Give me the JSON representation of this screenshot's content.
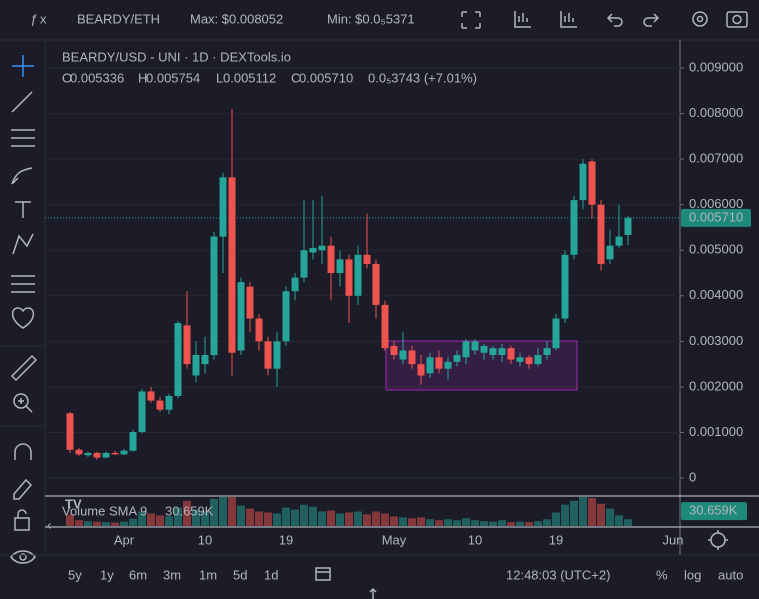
{
  "toolbar": {
    "pair": "BEARDY/ETH",
    "max": "Max: $0.008052",
    "min": "Min: $0.0₅5371"
  },
  "legend": {
    "title": "BEARDY/USD - UNI · 1D · DEXTools.io",
    "ohlc": [
      [
        "O",
        "0.005336"
      ],
      [
        "H",
        "0.005754"
      ],
      [
        "L",
        "0.005112"
      ],
      [
        "C",
        "0.005710"
      ]
    ],
    "change": "0.0₅3743 (+7.01%)",
    "volume_title": "Volume SMA 9",
    "volume_sma": "30.659K"
  },
  "bottom_bar": {
    "ranges": [
      "5y",
      "1y",
      "6m",
      "3m",
      "1m",
      "5d",
      "1d"
    ],
    "clock": "12:48:03 (UTC+2)",
    "options": [
      "%",
      "log",
      "auto"
    ]
  },
  "chart_data": {
    "type": "candlestick",
    "categories": [
      null,
      null,
      null,
      null,
      null,
      null,
      "Apr",
      null,
      null,
      null,
      null,
      null,
      null,
      null,
      null,
      "10",
      null,
      null,
      null,
      null,
      null,
      null,
      null,
      null,
      "19",
      null,
      null,
      null,
      null,
      null,
      null,
      null,
      null,
      null,
      null,
      null,
      "May",
      null,
      null,
      null,
      null,
      null,
      null,
      null,
      null,
      "10",
      null,
      null,
      null,
      null,
      null,
      null,
      null,
      null,
      "19",
      null,
      null,
      null,
      null,
      null,
      null,
      null,
      null,
      null,
      null,
      null,
      null,
      "Jun"
    ],
    "open": [
      0.00142,
      0.00062,
      0.0005,
      0.00055,
      0.00045,
      0.00055,
      0.00052,
      0.0006,
      0.00101,
      0.0019,
      0.0017,
      0.0015,
      0.0018,
      0.00335,
      0.00225,
      0.0025,
      0.0027,
      0.0053,
      0.0066,
      0.0028,
      0.0042,
      0.0035,
      0.003,
      0.0024,
      0.003,
      0.0041,
      0.0044,
      0.00495,
      0.005,
      0.0051,
      0.0045,
      0.0048,
      0.004,
      0.0049,
      0.0047,
      0.0038,
      0.0029,
      0.0026,
      0.0028,
      0.0025,
      0.0023,
      0.00265,
      0.0024,
      0.00255,
      0.00265,
      0.0028,
      0.00275,
      0.0027,
      0.0027,
      0.00285,
      0.00255,
      0.00265,
      0.0025,
      0.0027,
      0.00285,
      0.0035,
      0.0049,
      0.0061,
      0.00695,
      0.006,
      0.0048,
      0.0051,
      0.005336,
      null,
      null,
      null,
      null,
      null
    ],
    "high": [
      0.00145,
      0.00066,
      0.00058,
      0.00058,
      0.00058,
      0.0006,
      0.00064,
      0.00106,
      0.00196,
      0.002,
      0.00178,
      0.00185,
      0.00345,
      0.0041,
      0.003,
      0.0031,
      0.0054,
      0.0067,
      0.0081,
      0.0044,
      0.0043,
      0.0036,
      0.0031,
      0.0032,
      0.0042,
      0.0045,
      0.0061,
      0.0061,
      0.0062,
      0.0053,
      0.005,
      0.0049,
      0.0051,
      0.0058,
      0.0048,
      0.0039,
      0.003,
      0.0032,
      0.0029,
      0.0027,
      0.00275,
      0.0028,
      0.00265,
      0.0028,
      0.00305,
      0.00305,
      0.00295,
      0.0029,
      0.00295,
      0.0029,
      0.00275,
      0.0027,
      0.00285,
      0.003,
      0.0036,
      0.005,
      0.0062,
      0.007,
      0.007,
      0.0061,
      0.00545,
      0.006,
      0.005754,
      null,
      null,
      null,
      null,
      null
    ],
    "low": [
      0.00055,
      0.00048,
      0.00046,
      0.0004,
      0.00043,
      0.0005,
      0.0005,
      0.00058,
      0.00098,
      0.00165,
      0.00145,
      0.0014,
      0.00175,
      0.0024,
      0.0021,
      0.0023,
      0.0026,
      0.0045,
      0.00225,
      0.0027,
      0.0032,
      0.0028,
      0.00225,
      0.002,
      0.0029,
      0.0039,
      0.0043,
      0.0048,
      0.0047,
      0.0039,
      0.0042,
      0.0034,
      0.0038,
      0.0046,
      0.0035,
      0.0028,
      0.0026,
      0.0025,
      0.0024,
      0.00205,
      0.0022,
      0.0023,
      0.00215,
      0.00245,
      0.0025,
      0.0027,
      0.0026,
      0.0026,
      0.00255,
      0.0025,
      0.00245,
      0.0024,
      0.00245,
      0.0026,
      0.0028,
      0.0034,
      0.0048,
      0.0059,
      0.0057,
      0.00455,
      0.0047,
      0.00505,
      0.005112,
      null,
      null,
      null,
      null,
      null
    ],
    "close": [
      0.00062,
      0.00052,
      0.00055,
      0.00045,
      0.00055,
      0.00052,
      0.0006,
      0.00101,
      0.0019,
      0.0017,
      0.0015,
      0.0018,
      0.0034,
      0.0025,
      0.0027,
      0.0027,
      0.0053,
      0.0066,
      0.00275,
      0.0043,
      0.0035,
      0.003,
      0.0024,
      0.003,
      0.0041,
      0.0044,
      0.005,
      0.00505,
      0.0051,
      0.0045,
      0.0048,
      0.004,
      0.0049,
      0.0047,
      0.0038,
      0.00285,
      0.0027,
      0.0028,
      0.0025,
      0.00225,
      0.00265,
      0.0024,
      0.00255,
      0.0027,
      0.003,
      0.003,
      0.0029,
      0.00285,
      0.00285,
      0.0026,
      0.00265,
      0.0025,
      0.0027,
      0.00285,
      0.0035,
      0.0049,
      0.0061,
      0.0069,
      0.006,
      0.0047,
      0.0051,
      0.0053,
      0.00571,
      null,
      null,
      null,
      null,
      null
    ],
    "volume": [
      24000,
      12000,
      10000,
      9000,
      8000,
      7000,
      9000,
      15000,
      30000,
      26000,
      22000,
      20000,
      38000,
      52000,
      34000,
      30000,
      56000,
      60000,
      60000,
      42000,
      36000,
      30000,
      28000,
      26000,
      38000,
      34000,
      44000,
      40000,
      30000,
      32000,
      26000,
      28000,
      30000,
      24000,
      30000,
      26000,
      20000,
      18000,
      16000,
      18000,
      14000,
      12000,
      14000,
      12000,
      16000,
      12000,
      10000,
      9000,
      12000,
      8000,
      9000,
      8000,
      10000,
      14000,
      28000,
      44000,
      52000,
      60000,
      58000,
      46000,
      36000,
      22000,
      14000,
      null,
      null,
      null,
      null,
      null
    ],
    "up_color": "#26a69a",
    "down_color": "#ef5350",
    "ylim": [
      -0.000373,
      0.009615
    ],
    "yticks": [
      {
        "value": 0.009,
        "label": "0.009000"
      },
      {
        "value": 0.008,
        "label": "0.008000"
      },
      {
        "value": 0.007,
        "label": "0.007000"
      },
      {
        "value": 0.006,
        "label": "0.006000"
      },
      {
        "value": 0.005,
        "label": "0.005000"
      },
      {
        "value": 0.004,
        "label": "0.004000"
      },
      {
        "value": 0.003,
        "label": "0.003000"
      },
      {
        "value": 0.002,
        "label": "0.002000"
      },
      {
        "value": 0.001,
        "label": "0.001000"
      },
      0
    ],
    "volume_ylim": [
      0,
      60000
    ],
    "volume_sma_tick": {
      "value": 30659,
      "label": "30.659K"
    },
    "last_price": {
      "value": 0.00571,
      "label": "0.005710"
    },
    "grid": true
  }
}
